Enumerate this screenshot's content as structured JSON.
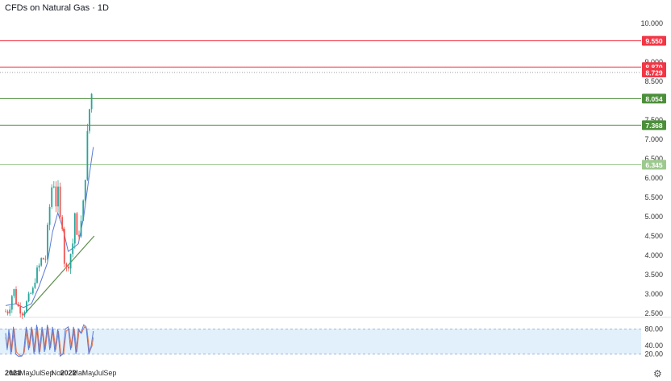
{
  "title": "CFDs on Natural Gas · 1D",
  "settings_icon": "gear-icon",
  "colors": {
    "up": "#26a69a",
    "down": "#ef5350",
    "ma": "#5b7bd5",
    "trend": "#5a8f4a",
    "red_level": "#f23645",
    "green_level": "#4c8f3a",
    "stoch_k": "#5b7bd5",
    "stoch_d": "#e8734a",
    "stoch_band": "#e1f0fb"
  },
  "chart_data": [
    {
      "type": "candlestick",
      "ylim": [
        2.5,
        10.0
      ],
      "y_ticks": [
        "10.000",
        "9.500",
        "9.000",
        "8.500",
        "8.000",
        "7.500",
        "7.000",
        "6.500",
        "6.000",
        "5.500",
        "5.000",
        "4.500",
        "4.000",
        "3.500",
        "3.000",
        "2.500"
      ],
      "x_ticks": [
        "2021",
        "Mar",
        "May",
        "Jul",
        "Sep",
        "Nov",
        "2022",
        "Mar",
        "May",
        "Jul",
        "Sep"
      ],
      "x_ticks_bold": [
        "2021",
        "2022"
      ],
      "close_path": [
        [
          "2021-01-01",
          2.55
        ],
        [
          "2021-01-20",
          2.55
        ],
        [
          "2021-02-05",
          2.95
        ],
        [
          "2021-02-20",
          3.1
        ],
        [
          "2021-03-05",
          2.75
        ],
        [
          "2021-03-25",
          2.6
        ],
        [
          "2021-04-15",
          2.5
        ],
        [
          "2021-05-01",
          2.75
        ],
        [
          "2021-05-20",
          2.95
        ],
        [
          "2021-06-10",
          3.1
        ],
        [
          "2021-06-25",
          3.5
        ],
        [
          "2021-07-15",
          3.7
        ],
        [
          "2021-08-01",
          3.95
        ],
        [
          "2021-08-20",
          3.85
        ],
        [
          "2021-09-05",
          4.8
        ],
        [
          "2021-09-20",
          5.5
        ],
        [
          "2021-10-05",
          6.1
        ],
        [
          "2021-10-20",
          5.3
        ],
        [
          "2021-11-01",
          5.7
        ],
        [
          "2021-11-15",
          4.9
        ],
        [
          "2021-11-25",
          5.0
        ],
        [
          "2021-12-10",
          3.8
        ],
        [
          "2021-12-25",
          3.6
        ],
        [
          "2022-01-10",
          3.95
        ],
        [
          "2022-01-27",
          4.3
        ],
        [
          "2022-02-05",
          5.3
        ],
        [
          "2022-02-20",
          4.4
        ],
        [
          "2022-03-05",
          4.6
        ],
        [
          "2022-03-20",
          4.9
        ],
        [
          "2022-04-05",
          5.6
        ],
        [
          "2022-04-20",
          7.0
        ],
        [
          "2022-05-01",
          7.3
        ],
        [
          "2022-05-10",
          8.4
        ],
        [
          "2022-05-20",
          8.1
        ],
        [
          "2022-05-27",
          8.8
        ]
      ],
      "moving_average": [
        [
          "2021-01-01",
          2.7
        ],
        [
          "2021-03-01",
          2.75
        ],
        [
          "2021-04-15",
          2.65
        ],
        [
          "2021-06-01",
          2.75
        ],
        [
          "2021-07-15",
          3.2
        ],
        [
          "2021-09-01",
          3.8
        ],
        [
          "2021-10-01",
          4.6
        ],
        [
          "2021-11-01",
          5.1
        ],
        [
          "2021-12-01",
          4.7
        ],
        [
          "2022-01-01",
          4.1
        ],
        [
          "2022-02-01",
          4.2
        ],
        [
          "2022-03-01",
          4.3
        ],
        [
          "2022-04-01",
          5.0
        ],
        [
          "2022-05-01",
          6.0
        ],
        [
          "2022-05-27",
          6.8
        ]
      ],
      "trendline": {
        "start": [
          "2021-04-15",
          2.45
        ],
        "end": [
          "2022-06-01",
          4.5
        ]
      },
      "horizontal_levels": [
        {
          "value": 9.55,
          "label": "9.550",
          "kind": "red"
        },
        {
          "value": 8.87,
          "label": "8.870",
          "kind": "red"
        },
        {
          "value": 8.729,
          "label": "8.729",
          "kind": "last"
        },
        {
          "value": 8.054,
          "label": "8.054",
          "kind": "green"
        },
        {
          "value": 7.368,
          "label": "7.368",
          "kind": "green"
        },
        {
          "value": 6.345,
          "label": "6.345",
          "kind": "lightgreen"
        }
      ]
    },
    {
      "type": "line",
      "name": "stochastic",
      "ylim": [
        0,
        100
      ],
      "y_ticks": [
        "80.00",
        "40.00",
        "20.00"
      ],
      "overbought": 80,
      "oversold": 20,
      "k_series": [
        [
          "2021-01-01",
          70
        ],
        [
          "2021-01-10",
          30
        ],
        [
          "2021-01-20",
          80
        ],
        [
          "2021-02-01",
          20
        ],
        [
          "2021-02-15",
          85
        ],
        [
          "2021-03-01",
          20
        ],
        [
          "2021-03-15",
          15
        ],
        [
          "2021-04-01",
          15
        ],
        [
          "2021-04-15",
          20
        ],
        [
          "2021-05-01",
          85
        ],
        [
          "2021-05-15",
          30
        ],
        [
          "2021-06-01",
          85
        ],
        [
          "2021-06-15",
          20
        ],
        [
          "2021-07-01",
          90
        ],
        [
          "2021-07-15",
          20
        ],
        [
          "2021-08-01",
          85
        ],
        [
          "2021-08-15",
          25
        ],
        [
          "2021-09-01",
          90
        ],
        [
          "2021-09-15",
          30
        ],
        [
          "2021-10-01",
          85
        ],
        [
          "2021-10-15",
          25
        ],
        [
          "2021-11-01",
          80
        ],
        [
          "2021-11-15",
          15
        ],
        [
          "2021-12-01",
          20
        ],
        [
          "2021-12-15",
          80
        ],
        [
          "2022-01-01",
          85
        ],
        [
          "2022-01-15",
          30
        ],
        [
          "2022-02-01",
          85
        ],
        [
          "2022-02-15",
          20
        ],
        [
          "2022-03-01",
          80
        ],
        [
          "2022-03-15",
          70
        ],
        [
          "2022-04-01",
          90
        ],
        [
          "2022-04-15",
          85
        ],
        [
          "2022-05-01",
          20
        ],
        [
          "2022-05-15",
          40
        ],
        [
          "2022-05-27",
          75
        ]
      ],
      "d_series": [
        [
          "2021-01-01",
          60
        ],
        [
          "2021-01-12",
          35
        ],
        [
          "2021-01-24",
          70
        ],
        [
          "2021-02-05",
          25
        ],
        [
          "2021-02-20",
          80
        ],
        [
          "2021-03-05",
          25
        ],
        [
          "2021-03-20",
          18
        ],
        [
          "2021-04-05",
          15
        ],
        [
          "2021-04-20",
          25
        ],
        [
          "2021-05-05",
          80
        ],
        [
          "2021-05-20",
          35
        ],
        [
          "2021-06-05",
          80
        ],
        [
          "2021-06-20",
          25
        ],
        [
          "2021-07-05",
          85
        ],
        [
          "2021-07-20",
          25
        ],
        [
          "2021-08-05",
          80
        ],
        [
          "2021-08-20",
          30
        ],
        [
          "2021-09-05",
          85
        ],
        [
          "2021-09-20",
          35
        ],
        [
          "2021-10-05",
          80
        ],
        [
          "2021-10-20",
          30
        ],
        [
          "2021-11-05",
          75
        ],
        [
          "2021-11-20",
          20
        ],
        [
          "2021-12-05",
          20
        ],
        [
          "2021-12-20",
          75
        ],
        [
          "2022-01-05",
          80
        ],
        [
          "2022-01-20",
          35
        ],
        [
          "2022-02-05",
          80
        ],
        [
          "2022-02-20",
          25
        ],
        [
          "2022-03-05",
          75
        ],
        [
          "2022-03-20",
          70
        ],
        [
          "2022-04-05",
          85
        ],
        [
          "2022-04-20",
          80
        ],
        [
          "2022-05-05",
          25
        ],
        [
          "2022-05-20",
          40
        ],
        [
          "2022-05-27",
          60
        ]
      ]
    }
  ]
}
